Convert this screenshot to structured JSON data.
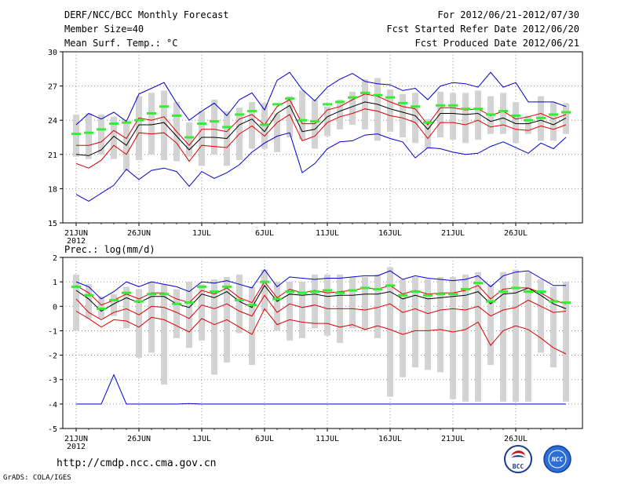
{
  "header": {
    "left": [
      "DERF/NCC/BCC Monthly Forecast",
      "Member Size=40",
      "Mean Surf. Temp.: °C"
    ],
    "right": [
      "For 2012/06/21-2012/07/30",
      "Fcst Started Refer Date 2012/06/20",
      "Fcst Produced Date 2012/06/21"
    ]
  },
  "footer": {
    "url": "http://cmdp.ncc.cma.gov.cn",
    "credit": "GrADS: COLA/IGES",
    "logo1_text": "BCC",
    "logo2_text": "NCC"
  },
  "colors": {
    "box": "#d3d3d3",
    "mean": "#000000",
    "inner": "#dd0000",
    "outer": "#0000cc",
    "marker": "#33ee33"
  },
  "chart_data": [
    {
      "type": "line",
      "title": "Mean Surf. Temp.: °C",
      "x_day_count": 40,
      "xtick_labels": [
        "21JUN",
        "26JUN",
        "1JUL",
        "6JUL",
        "11JUL",
        "16JUL",
        "21JUL",
        "26JUL"
      ],
      "xtick_days": [
        0,
        5,
        10,
        15,
        20,
        25,
        30,
        35
      ],
      "year_label": "2012",
      "ylim": [
        15,
        30
      ],
      "yticks": [
        15,
        18,
        21,
        24,
        27,
        30
      ],
      "box_low": [
        20.8,
        20.6,
        21.0,
        20.6,
        19.6,
        20.5,
        21.0,
        20.5,
        20.4,
        20.8,
        20.0,
        21.0,
        20.0,
        20.5,
        21.5,
        21.5,
        21.2,
        22.5,
        22.3,
        21.5,
        22.6,
        23.2,
        23.6,
        23.2,
        22.2,
        23.0,
        22.5,
        22.0,
        21.5,
        22.5,
        22.3,
        22.0,
        22.3,
        22.8,
        22.8,
        22.0,
        22.8,
        22.2,
        22.2,
        22.8
      ],
      "box_high": [
        24.5,
        24.6,
        24.5,
        24.3,
        23.7,
        26.1,
        26.4,
        26.6,
        25.6,
        23.8,
        24.8,
        25.8,
        24.8,
        25.1,
        25.6,
        25.5,
        24.6,
        26.1,
        26.6,
        25.8,
        25.2,
        25.8,
        26.5,
        27.6,
        27.7,
        26.7,
        26.3,
        26.4,
        24.1,
        26.5,
        26.4,
        26.4,
        26.6,
        26.1,
        26.4,
        25.6,
        24.4,
        26.1,
        25.6,
        25.5
      ],
      "series": [
        {
          "name": "marker",
          "values": [
            22.8,
            22.9,
            23.2,
            23.7,
            23.8,
            24.0,
            24.6,
            25.2,
            24.4,
            22.5,
            23.7,
            23.9,
            23.4,
            24.5,
            24.8,
            23.6,
            25.4,
            25.9,
            24.0,
            23.9,
            25.4,
            25.6,
            26.0,
            26.4,
            26.2,
            26.0,
            25.5,
            25.2,
            23.8,
            25.3,
            25.3,
            25.0,
            25.0,
            24.5,
            24.8,
            24.4,
            24.0,
            24.2,
            24.5,
            24.7
          ]
        },
        {
          "name": "mean",
          "values": [
            21.0,
            20.9,
            21.4,
            22.6,
            21.8,
            23.6,
            23.6,
            23.8,
            22.6,
            21.4,
            22.5,
            22.5,
            22.4,
            23.6,
            24.1,
            23.0,
            24.6,
            25.3,
            23.0,
            23.2,
            24.3,
            24.8,
            25.2,
            25.6,
            25.4,
            25.0,
            24.7,
            24.4,
            23.2,
            24.6,
            24.6,
            24.5,
            24.6,
            23.9,
            24.2,
            23.7,
            23.7,
            24.0,
            23.6,
            24.2
          ]
        },
        {
          "name": "inner_high",
          "values": [
            21.8,
            21.8,
            22.1,
            23.1,
            22.4,
            24.2,
            24.0,
            24.3,
            23.0,
            21.8,
            23.2,
            23.2,
            23.0,
            24.1,
            24.5,
            23.6,
            25.2,
            25.8,
            23.7,
            23.7,
            24.9,
            25.2,
            25.8,
            26.3,
            26.1,
            25.6,
            25.2,
            25.0,
            23.6,
            25.1,
            25.1,
            24.9,
            25.0,
            24.4,
            24.8,
            24.1,
            24.3,
            24.6,
            24.1,
            24.5
          ]
        },
        {
          "name": "inner_low",
          "values": [
            20.2,
            19.8,
            20.5,
            21.8,
            21.0,
            22.9,
            22.8,
            22.9,
            22.0,
            20.4,
            21.8,
            21.7,
            21.6,
            22.8,
            23.5,
            22.6,
            23.8,
            24.5,
            22.2,
            22.6,
            23.8,
            24.3,
            24.6,
            25.0,
            24.8,
            24.4,
            24.2,
            23.8,
            22.4,
            23.8,
            23.8,
            23.6,
            24.0,
            23.4,
            23.6,
            23.2,
            23.1,
            23.5,
            23.2,
            23.6
          ]
        },
        {
          "name": "outer_high",
          "values": [
            23.6,
            24.6,
            24.1,
            24.7,
            23.9,
            26.3,
            26.8,
            27.3,
            25.5,
            24.0,
            24.8,
            25.5,
            24.4,
            25.8,
            26.4,
            24.9,
            27.5,
            28.2,
            26.7,
            25.7,
            26.9,
            27.6,
            28.1,
            27.4,
            27.2,
            27.1,
            26.6,
            26.8,
            25.8,
            27.0,
            27.3,
            27.2,
            26.9,
            28.2,
            26.9,
            27.3,
            25.6,
            25.6,
            25.6,
            25.2
          ]
        },
        {
          "name": "outer_low",
          "values": [
            17.5,
            16.9,
            17.6,
            18.3,
            19.7,
            18.8,
            19.6,
            19.8,
            19.5,
            18.2,
            19.5,
            18.9,
            19.4,
            20.1,
            21.2,
            22.0,
            22.6,
            22.9,
            19.4,
            20.2,
            21.5,
            22.1,
            22.2,
            22.7,
            22.8,
            22.4,
            22.1,
            20.7,
            21.6,
            21.5,
            21.2,
            21.0,
            21.1,
            21.7,
            22.1,
            21.6,
            21.1,
            22.0,
            21.5,
            22.5
          ]
        }
      ]
    },
    {
      "type": "line",
      "title": "Prec.: log(mm/d)",
      "x_day_count": 40,
      "xtick_labels": [
        "21JUN",
        "26JUN",
        "1JUL",
        "6JUL",
        "11JUL",
        "16JUL",
        "21JUL",
        "26JUL"
      ],
      "xtick_days": [
        0,
        5,
        10,
        15,
        20,
        25,
        30,
        35
      ],
      "year_label": "2012",
      "ylim": [
        -5,
        2
      ],
      "yticks": [
        -5,
        -4,
        -3,
        -2,
        -1,
        0,
        1,
        2
      ],
      "box_low": [
        -1.0,
        -0.5,
        -0.5,
        -0.4,
        -0.9,
        -2.1,
        -1.9,
        -3.2,
        -1.3,
        -1.7,
        -1.4,
        -2.8,
        -2.3,
        -1.1,
        -2.4,
        -0.2,
        -1.0,
        -1.4,
        -1.3,
        -0.9,
        -1.2,
        -1.5,
        -0.9,
        -1.0,
        -1.3,
        -3.7,
        -2.9,
        -2.5,
        -2.6,
        -2.7,
        -3.8,
        -3.9,
        -3.9,
        -2.4,
        -3.9,
        -3.9,
        -3.9,
        -1.9,
        -2.5,
        -3.9
      ],
      "box_high": [
        1.3,
        0.9,
        0.4,
        0.5,
        0.8,
        0.7,
        1.0,
        0.9,
        0.7,
        1.0,
        0.9,
        1.1,
        1.2,
        1.3,
        0.8,
        1.5,
        1.0,
        1.0,
        1.0,
        1.3,
        1.3,
        1.3,
        1.2,
        1.2,
        1.3,
        1.6,
        1.1,
        1.2,
        1.1,
        1.2,
        1.2,
        1.3,
        1.4,
        0.9,
        1.4,
        1.5,
        1.4,
        1.1,
        0.8,
        1.0
      ],
      "series": [
        {
          "name": "marker",
          "values": [
            0.8,
            0.45,
            -0.1,
            0.25,
            0.55,
            0.2,
            0.5,
            0.5,
            0.1,
            0.15,
            0.8,
            0.6,
            0.8,
            0.25,
            0.05,
            1.0,
            0.3,
            0.6,
            0.55,
            0.6,
            0.65,
            0.55,
            0.65,
            0.75,
            0.7,
            0.85,
            0.45,
            0.6,
            0.45,
            0.5,
            0.5,
            0.7,
            0.95,
            0.2,
            0.6,
            0.75,
            0.6,
            0.6,
            0.2,
            0.15
          ]
        },
        {
          "name": "mean",
          "values": [
            0.65,
            0.3,
            -0.2,
            0.1,
            0.35,
            0.15,
            0.4,
            0.4,
            0.1,
            -0.05,
            0.5,
            0.35,
            0.6,
            0.2,
            -0.05,
            0.85,
            0.2,
            0.5,
            0.45,
            0.5,
            0.4,
            0.45,
            0.45,
            0.5,
            0.5,
            0.6,
            0.3,
            0.45,
            0.3,
            0.35,
            0.4,
            0.45,
            0.6,
            0.1,
            0.5,
            0.55,
            0.75,
            0.45,
            0.1,
            -0.1
          ]
        },
        {
          "name": "inner_high",
          "values": [
            0.85,
            0.55,
            0.05,
            0.25,
            0.5,
            0.3,
            0.55,
            0.55,
            0.3,
            0.15,
            0.65,
            0.5,
            0.75,
            0.35,
            0.15,
            1.0,
            0.35,
            0.7,
            0.55,
            0.65,
            0.55,
            0.6,
            0.65,
            0.75,
            0.7,
            0.85,
            0.5,
            0.65,
            0.5,
            0.55,
            0.55,
            0.65,
            0.85,
            0.3,
            0.7,
            0.75,
            0.75,
            0.55,
            0.25,
            0.1
          ]
        },
        {
          "name": "inner_low",
          "values": [
            0.3,
            -0.25,
            -0.55,
            -0.25,
            -0.1,
            -0.35,
            0.0,
            -0.05,
            -0.25,
            -0.5,
            0.05,
            -0.1,
            0.1,
            -0.2,
            -0.4,
            0.45,
            -0.25,
            0.1,
            -0.05,
            0.05,
            -0.1,
            -0.1,
            -0.1,
            -0.15,
            -0.05,
            0.1,
            -0.25,
            -0.1,
            -0.3,
            -0.15,
            -0.1,
            -0.15,
            0.0,
            -0.4,
            -0.15,
            -0.05,
            0.25,
            0.0,
            -0.25,
            -0.2
          ]
        },
        {
          "name": "inner_low2",
          "values": [
            -0.2,
            -0.5,
            -0.85,
            -0.55,
            -0.6,
            -0.85,
            -0.45,
            -0.55,
            -0.8,
            -1.05,
            -0.5,
            -0.75,
            -0.55,
            -0.85,
            -1.15,
            -0.1,
            -0.75,
            -0.55,
            -0.65,
            -0.7,
            -0.7,
            -0.85,
            -0.75,
            -0.95,
            -0.8,
            -0.95,
            -1.15,
            -1.0,
            -1.0,
            -0.95,
            -1.05,
            -0.95,
            -0.65,
            -1.6,
            -1.0,
            -0.8,
            -0.95,
            -1.3,
            -1.7,
            -1.95
          ]
        },
        {
          "name": "outer_high",
          "values": [
            1.0,
            0.8,
            0.3,
            0.6,
            1.0,
            0.8,
            1.0,
            0.9,
            0.8,
            0.6,
            1.0,
            0.95,
            1.05,
            0.9,
            0.75,
            1.5,
            0.8,
            1.2,
            1.15,
            1.1,
            1.15,
            1.15,
            1.2,
            1.25,
            1.25,
            1.45,
            1.1,
            1.25,
            1.15,
            1.1,
            1.05,
            1.1,
            1.25,
            0.8,
            1.25,
            1.4,
            1.45,
            1.15,
            0.85,
            0.85
          ]
        },
        {
          "name": "outer_low",
          "values": [
            -4,
            -4,
            -4,
            -2.8,
            -4,
            -4,
            -4,
            -4,
            -4,
            -3.98,
            -4,
            -4,
            -4,
            -4,
            -4,
            -4,
            -4,
            -4,
            -4,
            -4,
            -4,
            -4,
            -4,
            -4,
            -4,
            -4,
            -4,
            -4,
            -4,
            -4,
            -4,
            -4,
            -4,
            -4,
            -4,
            -4,
            -4,
            -4,
            -4,
            -4
          ]
        }
      ]
    }
  ]
}
